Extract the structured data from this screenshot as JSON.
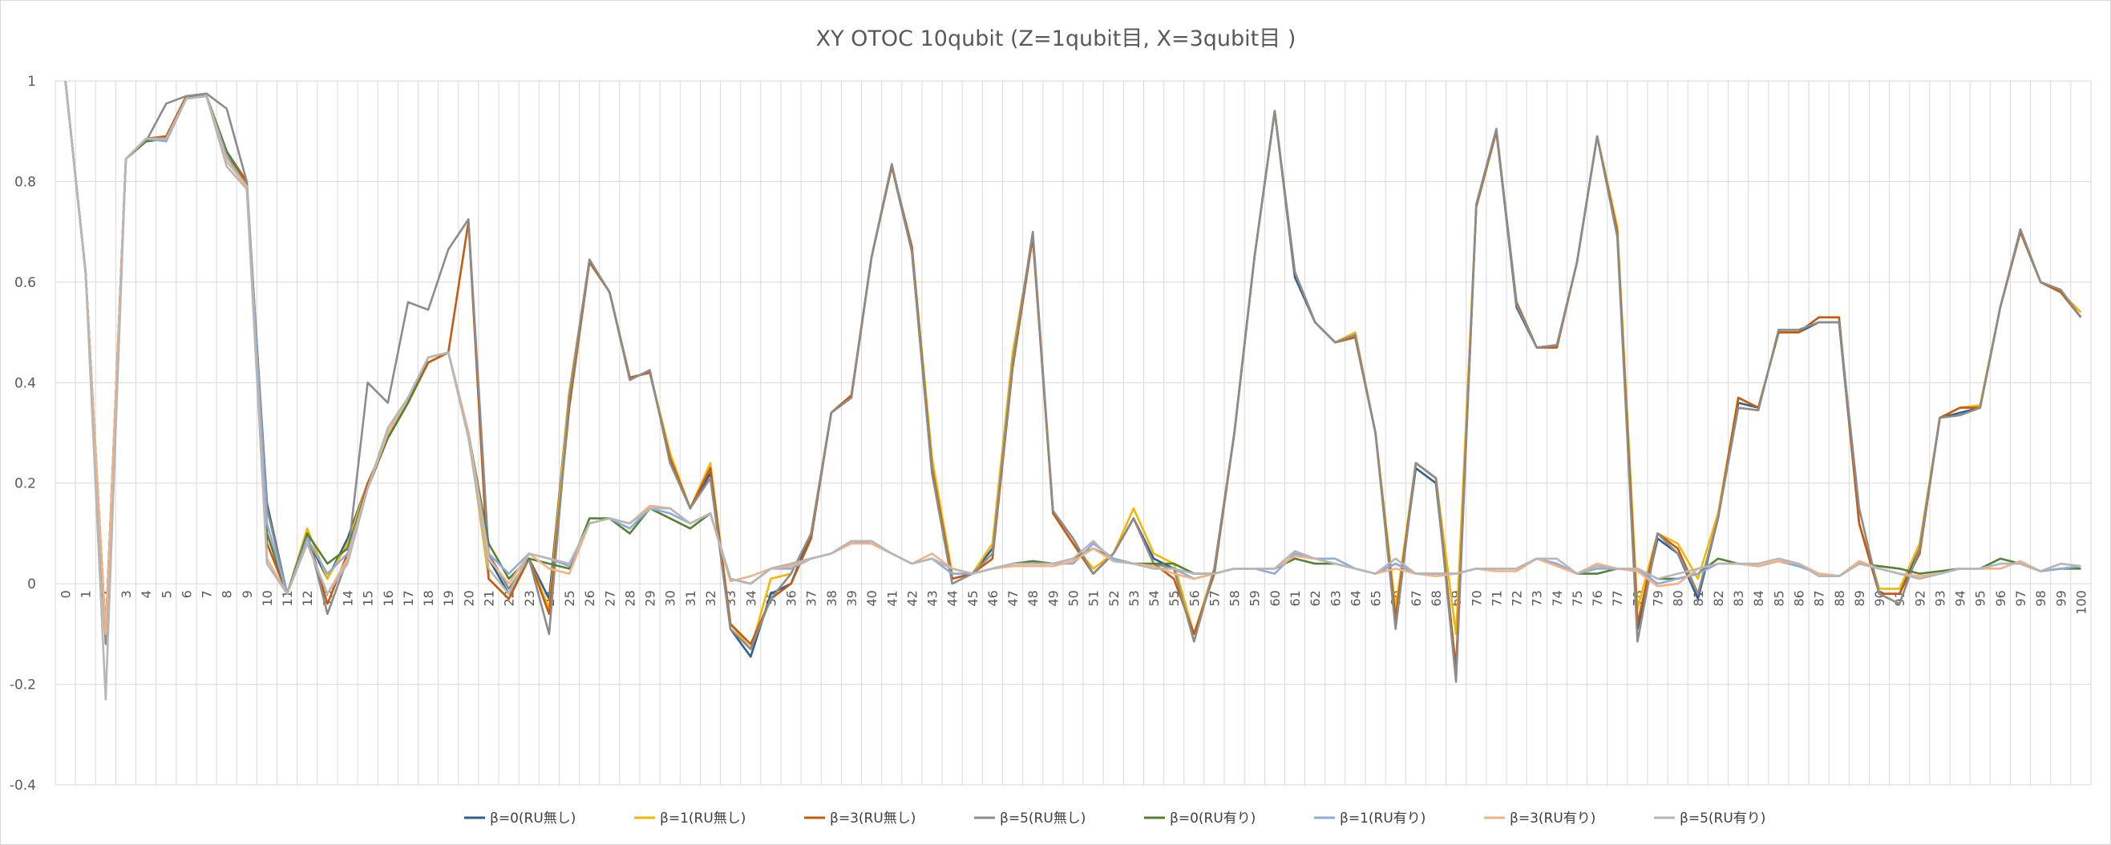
{
  "chart_data": {
    "type": "line",
    "title": "XY OTOC 10qubit (Z=1qubit目, X=3qubit目 )",
    "xlabel": "",
    "ylabel": "",
    "ylim": [
      -0.4,
      1
    ],
    "y_ticks": [
      "1",
      "0.8",
      "0.6",
      "0.4",
      "0.2",
      "0",
      "-0.2",
      "-0.4"
    ],
    "y_tick_values": [
      1,
      0.8,
      0.6,
      0.4,
      0.2,
      0,
      -0.2,
      -0.4
    ],
    "x_start": 0,
    "x_end": 100,
    "grid": "on",
    "legend_position": "bottom",
    "series": [
      {
        "name": "β=0(RU無し)",
        "color": "#2e5f91",
        "values": [
          1,
          0.62,
          -0.1,
          0.845,
          0.88,
          0.885,
          0.965,
          0.97,
          0.86,
          0.79,
          0.16,
          -0.02,
          0.09,
          0.01,
          0.09,
          0.2,
          0.29,
          0.36,
          0.44,
          0.46,
          0.3,
          0.05,
          -0.02,
          0.05,
          -0.03,
          0.38,
          0.64,
          0.58,
          0.41,
          0.42,
          0.25,
          0.15,
          0.22,
          -0.09,
          -0.145,
          -0.02,
          0,
          0.1,
          0.34,
          0.375,
          0.65,
          0.83,
          0.66,
          0.22,
          0.01,
          0.02,
          0.07,
          0.45,
          0.69,
          0.14,
          0.08,
          0.02,
          0.06,
          0.13,
          0.05,
          0.03,
          -0.1,
          0.02,
          0.3,
          0.65,
          0.94,
          0.61,
          0.52,
          0.48,
          0.49,
          0.3,
          -0.07,
          0.23,
          0.2,
          -0.17,
          0.75,
          0.9,
          0.55,
          0.47,
          0.47,
          0.64,
          0.89,
          0.7,
          -0.09,
          0.09,
          0.06,
          -0.03,
          0.13,
          0.36,
          0.35,
          0.5,
          0.5,
          0.52,
          0.52,
          0.12,
          -0.02,
          -0.02,
          0.07,
          0.33,
          0.34,
          0.35,
          0.55,
          0.7,
          0.6,
          0.58,
          0.53
        ]
      },
      {
        "name": "β=1(RU無し)",
        "color": "#f2b705",
        "values": [
          1,
          0.62,
          -0.1,
          0.845,
          0.885,
          0.89,
          0.97,
          0.97,
          0.86,
          0.795,
          0.1,
          -0.02,
          0.11,
          0.01,
          0.08,
          0.2,
          0.29,
          0.36,
          0.44,
          0.46,
          0.3,
          0.01,
          -0.03,
          0.05,
          -0.05,
          0.38,
          0.64,
          0.58,
          0.41,
          0.42,
          0.26,
          0.15,
          0.24,
          -0.08,
          -0.13,
          0.01,
          0.02,
          0.1,
          0.34,
          0.375,
          0.65,
          0.83,
          0.67,
          0.25,
          0.02,
          0.02,
          0.08,
          0.46,
          0.69,
          0.14,
          0.08,
          0.03,
          0.06,
          0.15,
          0.06,
          0.04,
          -0.1,
          0.03,
          0.3,
          0.65,
          0.94,
          0.62,
          0.52,
          0.48,
          0.5,
          0.3,
          -0.05,
          0.24,
          0.21,
          -0.1,
          0.75,
          0.9,
          0.56,
          0.47,
          0.47,
          0.64,
          0.89,
          0.71,
          -0.05,
          0.1,
          0.08,
          0.01,
          0.14,
          0.37,
          0.35,
          0.5,
          0.5,
          0.53,
          0.53,
          0.12,
          -0.01,
          -0.01,
          0.08,
          0.33,
          0.35,
          0.355,
          0.55,
          0.7,
          0.6,
          0.58,
          0.54
        ]
      },
      {
        "name": "β=3(RU無し)",
        "color": "#c55a11",
        "values": [
          1,
          0.62,
          -0.1,
          0.845,
          0.885,
          0.89,
          0.97,
          0.97,
          0.86,
          0.8,
          0.08,
          -0.02,
          0.1,
          -0.04,
          0.06,
          0.2,
          0.29,
          0.36,
          0.44,
          0.46,
          0.72,
          0.01,
          -0.03,
          0.05,
          -0.06,
          0.35,
          0.64,
          0.58,
          0.41,
          0.42,
          0.25,
          0.15,
          0.23,
          -0.08,
          -0.12,
          -0.03,
          0,
          0.09,
          0.34,
          0.375,
          0.65,
          0.83,
          0.67,
          0.23,
          0.01,
          0.02,
          0.05,
          0.43,
          0.69,
          0.14,
          0.08,
          0.02,
          0.06,
          0.13,
          0.04,
          0.01,
          -0.1,
          0.02,
          0.3,
          0.65,
          0.94,
          0.62,
          0.52,
          0.48,
          0.49,
          0.3,
          -0.07,
          0.24,
          0.21,
          -0.17,
          0.75,
          0.9,
          0.56,
          0.47,
          0.47,
          0.64,
          0.89,
          0.7,
          -0.08,
          0.1,
          0.07,
          -0.02,
          0.13,
          0.37,
          0.35,
          0.5,
          0.5,
          0.53,
          0.53,
          0.12,
          -0.02,
          -0.02,
          0.06,
          0.33,
          0.35,
          0.35,
          0.55,
          0.7,
          0.6,
          0.58,
          0.53
        ]
      },
      {
        "name": "β=5(RU無し)",
        "color": "#8c8c8c",
        "values": [
          1,
          0.62,
          -0.12,
          0.845,
          0.88,
          0.955,
          0.97,
          0.975,
          0.945,
          0.8,
          0.15,
          -0.02,
          0.1,
          -0.06,
          0.05,
          0.4,
          0.36,
          0.56,
          0.545,
          0.665,
          0.725,
          0.06,
          -0.01,
          0.05,
          -0.1,
          0.37,
          0.645,
          0.58,
          0.405,
          0.425,
          0.24,
          0.15,
          0.21,
          -0.09,
          -0.13,
          -0.03,
          0.02,
          0.1,
          0.34,
          0.37,
          0.65,
          0.835,
          0.66,
          0.22,
          0,
          0.02,
          0.06,
          0.44,
          0.7,
          0.145,
          0.09,
          0.02,
          0.06,
          0.13,
          0.04,
          0.03,
          -0.115,
          0.03,
          0.3,
          0.65,
          0.94,
          0.62,
          0.52,
          0.48,
          0.495,
          0.3,
          -0.09,
          0.24,
          0.21,
          -0.195,
          0.755,
          0.905,
          0.555,
          0.47,
          0.475,
          0.64,
          0.89,
          0.69,
          -0.115,
          0.1,
          0.06,
          -0.02,
          0.13,
          0.35,
          0.345,
          0.505,
          0.505,
          0.52,
          0.52,
          0.15,
          -0.02,
          -0.04,
          0.07,
          0.33,
          0.335,
          0.35,
          0.55,
          0.705,
          0.6,
          0.585,
          0.53
        ]
      },
      {
        "name": "β=0(RU有り)",
        "color": "#548235",
        "values": [
          1,
          0.62,
          -0.1,
          0.845,
          0.88,
          0.885,
          0.965,
          0.97,
          0.86,
          0.79,
          0.1,
          -0.02,
          0.1,
          0.04,
          0.07,
          0.19,
          0.29,
          0.36,
          0.45,
          0.46,
          0.3,
          0.08,
          0.01,
          0.05,
          0.04,
          0.03,
          0.13,
          0.13,
          0.1,
          0.15,
          0.13,
          0.11,
          0.14,
          0.01,
          0,
          0.03,
          0.04,
          0.05,
          0.06,
          0.085,
          0.08,
          0.06,
          0.04,
          0.05,
          0.03,
          0.02,
          0.03,
          0.04,
          0.045,
          0.04,
          0.05,
          0.07,
          0.05,
          0.04,
          0.04,
          0.04,
          0.02,
          0.02,
          0.03,
          0.03,
          0.03,
          0.05,
          0.04,
          0.04,
          0.03,
          0.02,
          0.04,
          0.02,
          0.02,
          0.02,
          0.03,
          0.03,
          0.03,
          0.05,
          0.04,
          0.02,
          0.02,
          0.03,
          0.03,
          0.01,
          0.01,
          0.02,
          0.05,
          0.04,
          0.035,
          0.045,
          0.035,
          0.02,
          0.015,
          0.04,
          0.035,
          0.03,
          0.02,
          0.025,
          0.03,
          0.03,
          0.05,
          0.04,
          0.025,
          0.03,
          0.03
        ]
      },
      {
        "name": "β=1(RU有り)",
        "color": "#8faadc",
        "values": [
          1,
          0.62,
          -0.1,
          0.845,
          0.885,
          0.88,
          0.965,
          0.97,
          0.85,
          0.79,
          0.12,
          -0.02,
          0.09,
          0.02,
          0.06,
          0.19,
          0.3,
          0.37,
          0.45,
          0.46,
          0.3,
          0.06,
          0.02,
          0.06,
          0.05,
          0.035,
          0.12,
          0.13,
          0.11,
          0.15,
          0.14,
          0.12,
          0.14,
          0.01,
          0,
          0.03,
          0.03,
          0.05,
          0.06,
          0.085,
          0.08,
          0.06,
          0.04,
          0.05,
          0.02,
          0.02,
          0.03,
          0.04,
          0.04,
          0.04,
          0.04,
          0.08,
          0.05,
          0.04,
          0.03,
          0.03,
          0.01,
          0.02,
          0.03,
          0.03,
          0.02,
          0.06,
          0.05,
          0.05,
          0.03,
          0.02,
          0.04,
          0.02,
          0.02,
          0.02,
          0.03,
          0.03,
          0.03,
          0.05,
          0.04,
          0.02,
          0.03,
          0.03,
          0.03,
          0,
          0.01,
          0.02,
          0.04,
          0.04,
          0.035,
          0.045,
          0.035,
          0.02,
          0.015,
          0.04,
          0.03,
          0.02,
          0.01,
          0.02,
          0.03,
          0.03,
          0.04,
          0.04,
          0.025,
          0.03,
          0.035
        ]
      },
      {
        "name": "β=3(RU有り)",
        "color": "#f4b183",
        "values": [
          1,
          0.62,
          -0.1,
          0.845,
          0.885,
          0.885,
          0.965,
          0.97,
          0.84,
          0.79,
          0.05,
          -0.02,
          0.08,
          -0.02,
          0.05,
          0.19,
          0.3,
          0.37,
          0.45,
          0.46,
          0.3,
          0.05,
          0,
          0.06,
          0.03,
          0.02,
          0.12,
          0.13,
          0.12,
          0.155,
          0.15,
          0.12,
          0.14,
          0.005,
          0.015,
          0.03,
          0.035,
          0.05,
          0.06,
          0.08,
          0.08,
          0.06,
          0.04,
          0.06,
          0.03,
          0.02,
          0.03,
          0.035,
          0.035,
          0.035,
          0.045,
          0.07,
          0.045,
          0.04,
          0.035,
          0.02,
          0.01,
          0.02,
          0.03,
          0.03,
          0.03,
          0.055,
          0.05,
          0.04,
          0.03,
          0.02,
          0.03,
          0.02,
          0.015,
          0.02,
          0.03,
          0.025,
          0.025,
          0.05,
          0.035,
          0.02,
          0.04,
          0.03,
          0.025,
          -0.005,
          0,
          0.03,
          0.04,
          0.04,
          0.035,
          0.045,
          0.04,
          0.02,
          0.015,
          0.045,
          0.03,
          0.02,
          0.015,
          0.02,
          0.03,
          0.03,
          0.03,
          0.045,
          0.025,
          0.04,
          0.035
        ]
      },
      {
        "name": "β=5(RU有り)",
        "color": "#b7b7b7",
        "values": [
          1,
          0.62,
          -0.23,
          0.845,
          0.885,
          0.885,
          0.965,
          0.97,
          0.83,
          0.785,
          0.04,
          -0.02,
          0.08,
          -0.02,
          0.04,
          0.19,
          0.31,
          0.37,
          0.45,
          0.46,
          0.29,
          0.03,
          -0.02,
          0.06,
          0.05,
          0.04,
          0.12,
          0.13,
          0.12,
          0.15,
          0.15,
          0.12,
          0.14,
          0.01,
          0,
          0.03,
          0.04,
          0.05,
          0.06,
          0.085,
          0.085,
          0.06,
          0.04,
          0.05,
          0.03,
          0.02,
          0.03,
          0.04,
          0.04,
          0.04,
          0.05,
          0.085,
          0.045,
          0.04,
          0.03,
          0.03,
          0.02,
          0.02,
          0.03,
          0.03,
          0.03,
          0.065,
          0.05,
          0.04,
          0.03,
          0.02,
          0.05,
          0.02,
          0.02,
          0.02,
          0.03,
          0.03,
          0.03,
          0.05,
          0.05,
          0.02,
          0.035,
          0.03,
          0.03,
          0.01,
          0.02,
          0.03,
          0.04,
          0.04,
          0.04,
          0.05,
          0.04,
          0.015,
          0.015,
          0.04,
          0.03,
          0.02,
          0.01,
          0.02,
          0.03,
          0.03,
          0.04,
          0.04,
          0.025,
          0.04,
          0.035
        ]
      }
    ]
  }
}
